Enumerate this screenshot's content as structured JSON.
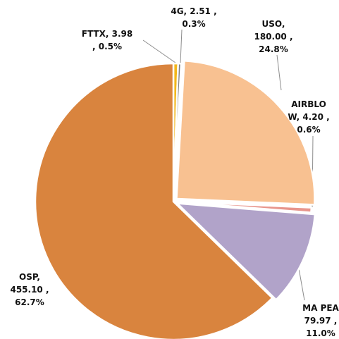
{
  "chart_data": {
    "type": "pie",
    "values": [
      3.98,
      2.51,
      180.0,
      4.2,
      79.97,
      455.1
    ],
    "value_labels": [
      [
        "FTTX,  3.98",
        ", 0.5%"
      ],
      [
        "4G,  2.51 ,",
        "0.3%"
      ],
      [
        "USO,",
        "180.00 ,",
        "24.8%"
      ],
      [
        "AIRBLO",
        "W,  4.20 ,",
        "0.6%"
      ],
      [
        "MA PEA",
        "79.97 ,",
        "11.0%"
      ],
      [
        "OSP,",
        "455.10 ,",
        "62.7%"
      ]
    ],
    "colors": [
      "#f2b71c",
      "#808080",
      "#f8c191",
      "#e8958c",
      "#b1a3c9",
      "#d9843e"
    ],
    "exploded": [
      false,
      false,
      true,
      false,
      true,
      false
    ]
  }
}
